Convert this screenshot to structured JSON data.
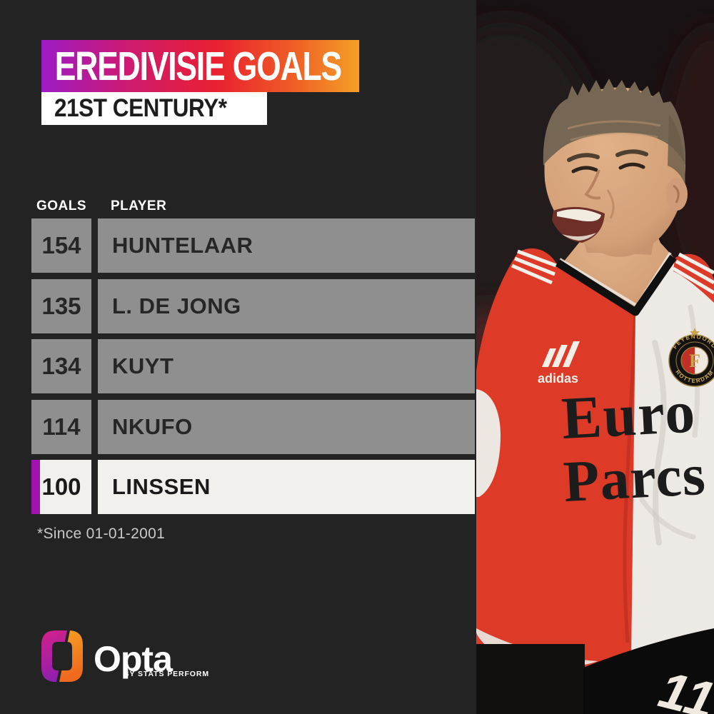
{
  "header": {
    "title": "EREDIVISIE GOALS",
    "subtitle": "21ST CENTURY*"
  },
  "table": {
    "columns": {
      "goals": "GOALS",
      "player": "PLAYER"
    },
    "rows": [
      {
        "goals": "154",
        "player": "HUNTELAAR",
        "highlight": false
      },
      {
        "goals": "135",
        "player": "L. DE JONG",
        "highlight": false
      },
      {
        "goals": "134",
        "player": "KUYT",
        "highlight": false
      },
      {
        "goals": "114",
        "player": "NKUFO",
        "highlight": false
      },
      {
        "goals": "100",
        "player": "LINSSEN",
        "highlight": true
      }
    ]
  },
  "footnote": "*Since 01-01-2001",
  "branding": {
    "name": "Opta",
    "tagline": "BY STATS PERFORM"
  },
  "photo": {
    "kit_brand": "adidas",
    "sponsor_line1": "Euro",
    "sponsor_line2": "Parcs",
    "shorts_number": "11",
    "crest": {
      "top_text": "FEYENOORD",
      "bottom_text": "ROTTERDAM",
      "letter": "F"
    }
  },
  "colors": {
    "background": "#232323",
    "row_gray": "#8f8f8f",
    "highlight_row": "#f2f0ed",
    "accent_purple": "#a212ae",
    "banner_gradient": [
      "#9c1bc5",
      "#e92030",
      "#f4a026"
    ],
    "shirt_red": "#dd3a28",
    "shirt_white": "#edeae6"
  },
  "chart_data": {
    "type": "table",
    "title": "EREDIVISIE GOALS",
    "subtitle": "21ST CENTURY*",
    "columns": [
      "GOALS",
      "PLAYER"
    ],
    "rows": [
      [
        154,
        "HUNTELAAR"
      ],
      [
        135,
        "L. DE JONG"
      ],
      [
        134,
        "KUYT"
      ],
      [
        114,
        "NKUFO"
      ],
      [
        100,
        "LINSSEN"
      ]
    ],
    "highlighted_row": "LINSSEN",
    "footnote": "*Since 01-01-2001"
  }
}
